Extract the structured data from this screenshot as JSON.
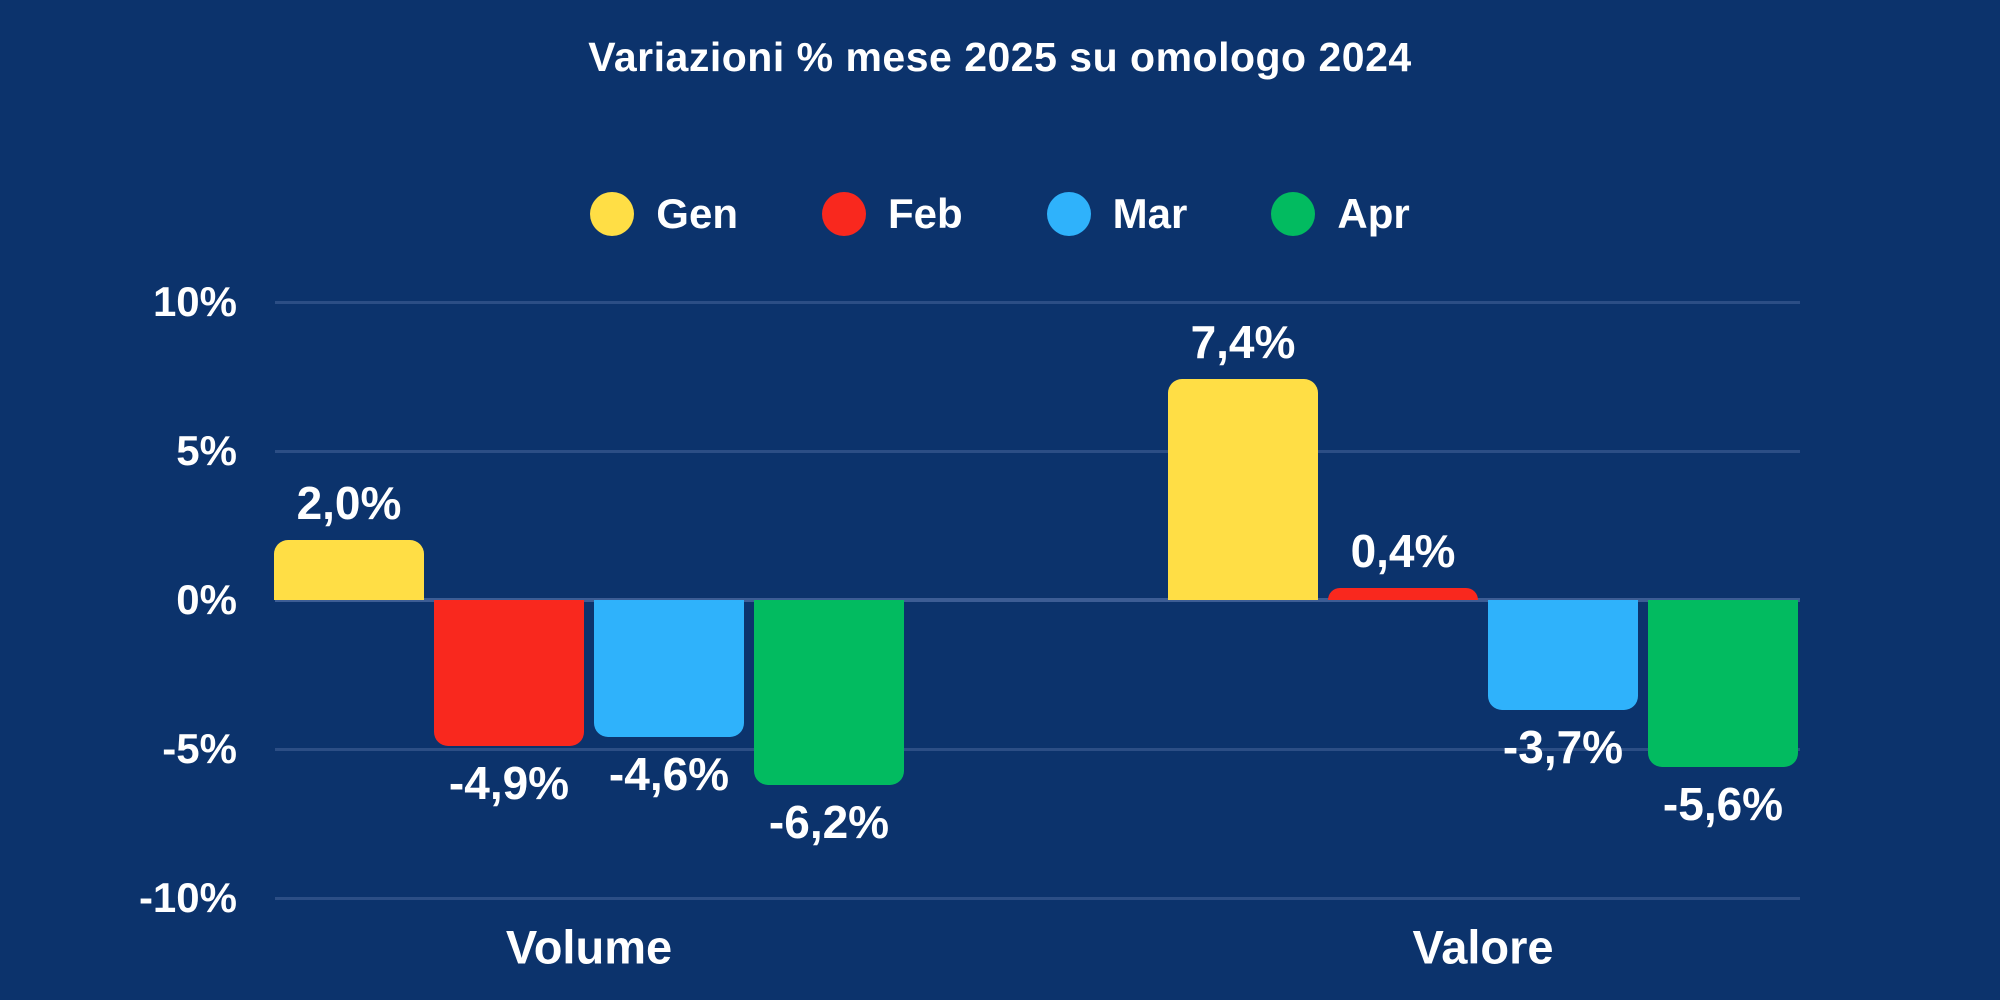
{
  "page": {
    "background_color": "#0C336C",
    "text_color": "#FFFFFF"
  },
  "chart_data": {
    "type": "bar",
    "title": "Variazioni % mese 2025 su omologo 2024",
    "categories": [
      "Volume",
      "Valore"
    ],
    "series": [
      {
        "name": "Gen",
        "color": "#FFDE45",
        "values": [
          2.0,
          7.4
        ],
        "value_labels": [
          "2,0%",
          "7,4%"
        ]
      },
      {
        "name": "Feb",
        "color": "#F9281E",
        "values": [
          -4.9,
          0.4
        ],
        "value_labels": [
          "-4,9%",
          "0,4%"
        ]
      },
      {
        "name": "Mar",
        "color": "#2FB2FB",
        "values": [
          -4.6,
          -3.7
        ],
        "value_labels": [
          "-4,6%",
          "-3,7%"
        ]
      },
      {
        "name": "Apr",
        "color": "#02BB60",
        "values": [
          -6.2,
          -5.6
        ],
        "value_labels": [
          "-6,2%",
          "-5,6%"
        ]
      }
    ],
    "y_axis": {
      "range": [
        -10,
        10
      ],
      "ticks": [
        {
          "value": 10,
          "label": "10%"
        },
        {
          "value": 5,
          "label": "5%"
        },
        {
          "value": 0,
          "label": "0%"
        },
        {
          "value": -5,
          "label": "-5%"
        },
        {
          "value": -10,
          "label": "-10%"
        }
      ]
    },
    "grid": true,
    "legend_position": "top",
    "value_suffix": "%",
    "decimal_separator": ",",
    "colors": {
      "gridline": "#2C4E85",
      "zeroline": "#3D5D95"
    }
  }
}
